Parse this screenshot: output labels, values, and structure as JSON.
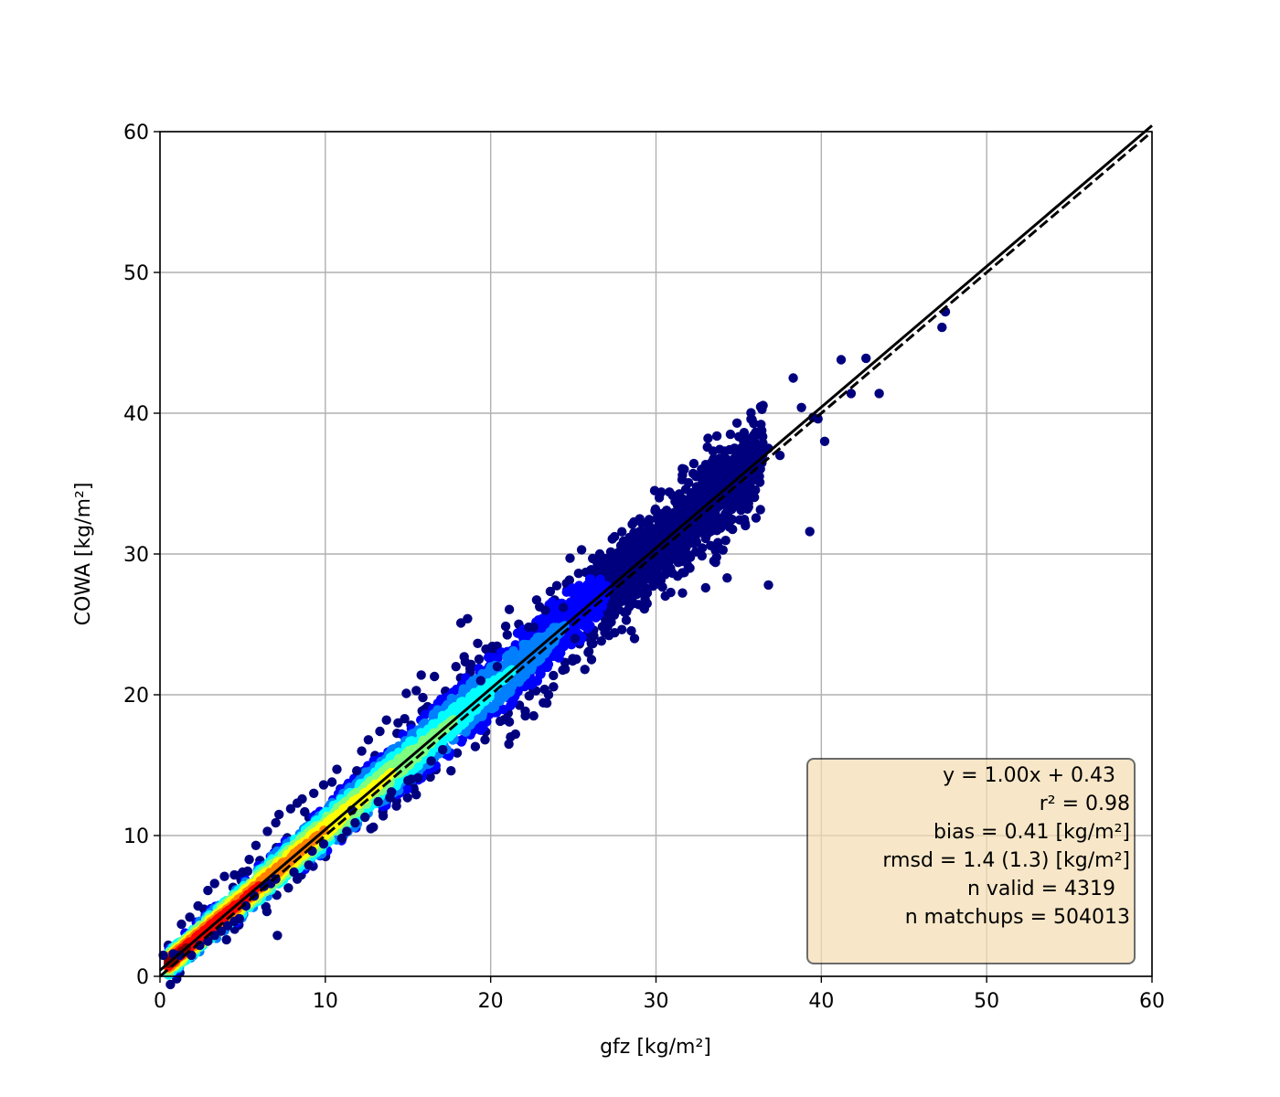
{
  "chart_data": {
    "type": "scatter",
    "title": "",
    "xlabel": "gfz [kg/m²]",
    "ylabel": "COWA [kg/m²]",
    "xlim": [
      0,
      60
    ],
    "ylim": [
      0,
      60
    ],
    "xticks": [
      "0",
      "10",
      "20",
      "30",
      "40",
      "50",
      "60"
    ],
    "yticks": [
      "0",
      "10",
      "20",
      "30",
      "40",
      "50",
      "60"
    ],
    "grid": true,
    "colormap": "jet (point density)",
    "fit_line": {
      "slope": 1.0,
      "intercept": 0.43,
      "style": "solid"
    },
    "reference_line": {
      "slope": 1.0,
      "intercept": 0.0,
      "style": "dashed"
    },
    "annotation": {
      "placement": "bottom-right",
      "fit_equation": "y = 1.00x + 0.43",
      "r2": "r² = 0.98",
      "bias": "bias = 0.41 [kg/m²]",
      "rmsd": "rmsd = 1.4 (1.3) [kg/m²]",
      "n_valid": "n valid = 4319",
      "n_matchups": "n matchups = 504013"
    },
    "stats": {
      "slope": 1.0,
      "intercept": 0.43,
      "r2": 0.98,
      "bias": 0.41,
      "rmsd": 1.4,
      "rmsd_alt": 1.3,
      "n_valid": 4319,
      "n_matchups": 504013
    },
    "outliers": [
      [
        47.5,
        47.2
      ],
      [
        47.3,
        46.1
      ],
      [
        41.2,
        43.8
      ],
      [
        42.7,
        43.9
      ],
      [
        43.5,
        41.4
      ],
      [
        41.8,
        41.4
      ],
      [
        38.3,
        42.5
      ],
      [
        38.8,
        40.4
      ],
      [
        39.5,
        39.7
      ],
      [
        40.2,
        38.0
      ],
      [
        39.8,
        39.6
      ],
      [
        34.9,
        39.3
      ],
      [
        34.5,
        38.5
      ],
      [
        35.4,
        37.8
      ],
      [
        36.8,
        37.5
      ],
      [
        37.5,
        37.0
      ],
      [
        39.3,
        31.6
      ],
      [
        36.8,
        27.8
      ],
      [
        34.3,
        28.3
      ],
      [
        33.5,
        29.5
      ],
      [
        33.3,
        30.6
      ],
      [
        33.6,
        29.4
      ],
      [
        33.0,
        27.6
      ],
      [
        29.6,
        32.4
      ],
      [
        30.2,
        34.0
      ],
      [
        31.6,
        35.6
      ],
      [
        26.6,
        30.0
      ],
      [
        25.5,
        30.3
      ],
      [
        24.4,
        26.2
      ],
      [
        24.8,
        29.7
      ],
      [
        28.7,
        24.0
      ],
      [
        28.2,
        25.3
      ],
      [
        29.3,
        26.1
      ],
      [
        27.5,
        24.4
      ],
      [
        27.1,
        25.0
      ],
      [
        23.3,
        26.0
      ],
      [
        22.6,
        24.8
      ],
      [
        22.3,
        24.8
      ],
      [
        20.4,
        22.0
      ],
      [
        19.4,
        21.0
      ],
      [
        18.2,
        25.1
      ],
      [
        18.6,
        25.4
      ],
      [
        18.4,
        22.7
      ],
      [
        17.9,
        22.0
      ],
      [
        16.6,
        21.3
      ],
      [
        15.8,
        21.4
      ],
      [
        15.9,
        19.8
      ],
      [
        14.9,
        20.1
      ],
      [
        25.1,
        24.0
      ],
      [
        25.9,
        23.0
      ],
      [
        26.1,
        22.5
      ],
      [
        25.7,
        21.8
      ],
      [
        23.4,
        19.4
      ],
      [
        23.5,
        20.0
      ],
      [
        21.5,
        17.2
      ],
      [
        21.2,
        17.0
      ],
      [
        21.1,
        16.5
      ],
      [
        22.1,
        18.5
      ],
      [
        22.6,
        18.5
      ],
      [
        17.6,
        14.6
      ],
      [
        17.1,
        16.1
      ],
      [
        16.4,
        15.3
      ],
      [
        15.6,
        14.1
      ],
      [
        15.2,
        14.0
      ],
      [
        15.0,
        13.9
      ],
      [
        15.5,
        12.9
      ],
      [
        14.0,
        13.1
      ],
      [
        14.3,
        12.1
      ],
      [
        13.9,
        12.7
      ],
      [
        13.2,
        12.4
      ],
      [
        13.5,
        11.4
      ],
      [
        12.9,
        10.6
      ],
      [
        12.4,
        11.3
      ],
      [
        11.8,
        10.9
      ],
      [
        11.6,
        11.8
      ],
      [
        11.3,
        10.3
      ],
      [
        11.0,
        9.8
      ],
      [
        9.9,
        9.4
      ],
      [
        9.2,
        8.9
      ],
      [
        9.0,
        7.9
      ],
      [
        8.3,
        6.9
      ],
      [
        8.1,
        7.4
      ],
      [
        7.1,
        2.9
      ],
      [
        7.0,
        6.9
      ],
      [
        6.7,
        6.6
      ],
      [
        6.3,
        6.4
      ],
      [
        5.7,
        5.7
      ],
      [
        5.2,
        5.0
      ],
      [
        4.8,
        4.1
      ],
      [
        4.5,
        3.9
      ],
      [
        4.1,
        3.6
      ],
      [
        3.7,
        3.2
      ],
      [
        3.3,
        2.9
      ],
      [
        2.9,
        2.5
      ],
      [
        2.4,
        2.2
      ],
      [
        1.9,
        1.5
      ],
      [
        1.2,
        1.5
      ],
      [
        0.8,
        1.6
      ],
      [
        0.2,
        1.5
      ],
      [
        15.5,
        20.3
      ],
      [
        14.8,
        18.3
      ],
      [
        14.4,
        18.0
      ],
      [
        13.7,
        18.2
      ],
      [
        13.3,
        17.4
      ],
      [
        12.6,
        16.8
      ],
      [
        12.2,
        16.0
      ],
      [
        11.9,
        14.6
      ],
      [
        10.7,
        14.7
      ],
      [
        10.4,
        13.8
      ],
      [
        9.9,
        13.6
      ],
      [
        9.3,
        13.0
      ],
      [
        8.6,
        12.6
      ],
      [
        8.3,
        12.3
      ],
      [
        7.9,
        11.9
      ],
      [
        7.2,
        11.5
      ],
      [
        7.0,
        10.9
      ],
      [
        6.5,
        10.3
      ],
      [
        5.8,
        9.3
      ],
      [
        5.4,
        8.3
      ],
      [
        5.0,
        7.4
      ],
      [
        4.5,
        7.2
      ],
      [
        3.9,
        7.1
      ],
      [
        3.3,
        6.6
      ],
      [
        2.9,
        6.1
      ],
      [
        2.3,
        5.0
      ],
      [
        1.8,
        4.2
      ],
      [
        1.3,
        3.7
      ]
    ]
  },
  "colors": {
    "axes": "#000000",
    "grid": "#b0b0b0",
    "fit_line": "#000000",
    "reference_line": "#000000",
    "box_fill": "#f5deb3",
    "box_edge": "#333333",
    "jet_scale": [
      "#00007f",
      "#0000ff",
      "#007fff",
      "#00ffff",
      "#7fff7f",
      "#ffff00",
      "#ff7f00",
      "#ff0000",
      "#7f0000"
    ]
  }
}
